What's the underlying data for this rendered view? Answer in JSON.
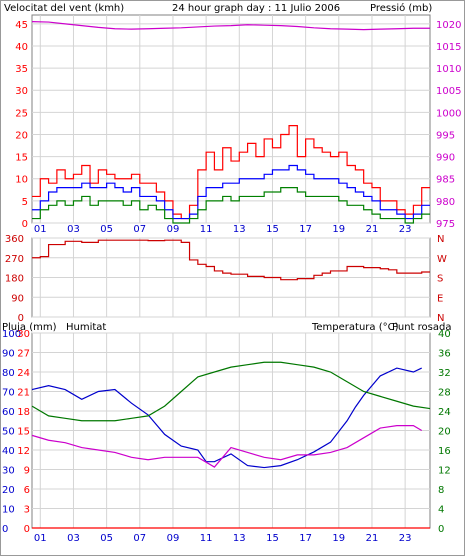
{
  "colors": {
    "wind": "#ff0000",
    "wind_avg": "#0000ff",
    "wind_gust": "#008000",
    "pressure": "#cc00cc",
    "direction": "#cc0000",
    "rain": "#ff0000",
    "humidity": "#0000cc",
    "temperature": "#007700",
    "dewpoint": "#cc00cc",
    "grid": "#d4d4d4"
  },
  "chart_data": [
    {
      "type": "line",
      "title": "24 hour graph day : 11 Julio 2006",
      "left_axis_label": "Velocitat del vent (kmh)",
      "right_axis_label": "Pressió (mb)",
      "x_ticks": [
        "01",
        "03",
        "05",
        "07",
        "09",
        "11",
        "13",
        "15",
        "17",
        "19",
        "21",
        "23"
      ],
      "y_left_ticks": [
        "0",
        "5",
        "10",
        "15",
        "20",
        "25",
        "30",
        "35",
        "40",
        "45"
      ],
      "y_left_range": [
        0,
        47
      ],
      "y_right_ticks": [
        "975",
        "980",
        "985",
        "990",
        "995",
        "1000",
        "1005",
        "1010",
        "1015",
        "1020"
      ],
      "y_right_range": [
        975,
        1022
      ],
      "series": [
        {
          "key": "gust",
          "color_key": "wind",
          "x": [
            0,
            0.5,
            1,
            1.5,
            2,
            2.5,
            3,
            3.5,
            4,
            4.5,
            5,
            5.5,
            6,
            6.5,
            7,
            7.5,
            8,
            8.5,
            9,
            9.5,
            10,
            10.5,
            11,
            11.5,
            12,
            12.5,
            13,
            13.5,
            14,
            14.5,
            15,
            15.5,
            16,
            16.5,
            17,
            17.5,
            18,
            18.5,
            19,
            19.5,
            20,
            20.5,
            21,
            21.5,
            22,
            22.5,
            23,
            23.5
          ],
          "values": [
            6,
            10,
            9,
            12,
            10,
            11,
            13,
            9,
            12,
            11,
            10,
            10,
            11,
            9,
            9,
            7,
            5,
            2,
            1,
            4,
            12,
            16,
            12,
            17,
            14,
            16,
            18,
            15,
            19,
            17,
            20,
            22,
            15,
            19,
            17,
            16,
            15,
            16,
            13,
            12,
            9,
            8,
            5,
            5,
            3,
            2,
            4,
            8
          ]
        },
        {
          "key": "average",
          "color_key": "wind_avg",
          "x": [
            0,
            0.5,
            1,
            1.5,
            2,
            2.5,
            3,
            3.5,
            4,
            4.5,
            5,
            5.5,
            6,
            6.5,
            7,
            7.5,
            8,
            8.5,
            9,
            9.5,
            10,
            10.5,
            11,
            11.5,
            12,
            12.5,
            13,
            13.5,
            14,
            14.5,
            15,
            15.5,
            16,
            16.5,
            17,
            17.5,
            18,
            18.5,
            19,
            19.5,
            20,
            20.5,
            21,
            21.5,
            22,
            22.5,
            23,
            23.5
          ],
          "values": [
            3,
            5,
            7,
            8,
            8,
            8,
            9,
            8,
            8,
            9,
            8,
            7,
            8,
            6,
            6,
            5,
            3,
            1,
            1,
            2,
            6,
            8,
            8,
            9,
            9,
            10,
            10,
            10,
            11,
            12,
            12,
            13,
            12,
            11,
            10,
            10,
            10,
            9,
            8,
            7,
            6,
            5,
            3,
            3,
            2,
            1,
            2,
            4
          ]
        },
        {
          "key": "low",
          "color_key": "wind_gust",
          "x": [
            0,
            0.5,
            1,
            1.5,
            2,
            2.5,
            3,
            3.5,
            4,
            4.5,
            5,
            5.5,
            6,
            6.5,
            7,
            7.5,
            8,
            8.5,
            9,
            9.5,
            10,
            10.5,
            11,
            11.5,
            12,
            12.5,
            13,
            13.5,
            14,
            14.5,
            15,
            15.5,
            16,
            16.5,
            17,
            17.5,
            18,
            18.5,
            19,
            19.5,
            20,
            20.5,
            21,
            21.5,
            22,
            22.5,
            23,
            23.5
          ],
          "values": [
            1,
            3,
            4,
            5,
            4,
            5,
            6,
            4,
            5,
            5,
            5,
            4,
            5,
            3,
            4,
            3,
            1,
            0,
            0,
            1,
            3,
            5,
            5,
            6,
            5,
            6,
            6,
            6,
            7,
            7,
            8,
            8,
            7,
            6,
            6,
            6,
            6,
            5,
            4,
            4,
            3,
            2,
            1,
            1,
            1,
            0,
            1,
            2
          ]
        },
        {
          "key": "pressure",
          "color_key": "pressure",
          "axis": "right",
          "x": [
            0,
            1,
            2,
            3,
            4,
            5,
            6,
            7,
            8,
            9,
            10,
            11,
            12,
            13,
            14,
            15,
            16,
            17,
            18,
            19,
            20,
            21,
            22,
            23,
            24
          ],
          "values": [
            1020.5,
            1020.4,
            1020.0,
            1019.6,
            1019.2,
            1018.9,
            1018.8,
            1018.9,
            1019.0,
            1019.1,
            1019.3,
            1019.5,
            1019.6,
            1019.8,
            1019.7,
            1019.6,
            1019.4,
            1019.1,
            1018.9,
            1018.8,
            1018.7,
            1018.8,
            1018.9,
            1019.0,
            1019.0
          ]
        }
      ]
    },
    {
      "type": "line",
      "y_left_ticks": [
        "360",
        "270",
        "180",
        "90",
        "0"
      ],
      "y_left_range": [
        0,
        360
      ],
      "y_right_ticks": [
        "N",
        "W",
        "S",
        "E",
        "N"
      ],
      "series": [
        {
          "key": "direction",
          "color_key": "direction",
          "x": [
            0,
            0.5,
            1,
            2,
            3,
            4,
            5,
            6,
            7,
            8,
            9,
            9.5,
            10,
            10.5,
            11,
            11.5,
            12,
            13,
            14,
            15,
            16,
            17,
            17.5,
            18,
            19,
            20,
            21,
            21.5,
            22,
            23,
            23.5
          ],
          "values": [
            270,
            275,
            330,
            345,
            340,
            350,
            350,
            350,
            348,
            350,
            340,
            260,
            240,
            230,
            210,
            200,
            195,
            185,
            180,
            170,
            175,
            190,
            200,
            210,
            230,
            225,
            220,
            215,
            200,
            200,
            205
          ]
        }
      ]
    },
    {
      "type": "line",
      "left_axis_label": "Pluja (mm)",
      "left_axis_label_2": "Humitat",
      "right_axis_label": "Temperatura (°C)",
      "right_axis_label_2": "Punt rosada",
      "y_left_ticks": [
        "0",
        "3",
        "6",
        "9",
        "12",
        "15",
        "18",
        "21",
        "24",
        "27",
        "30"
      ],
      "y_left2_ticks": [
        "0",
        "10",
        "20",
        "30",
        "40",
        "50",
        "60",
        "70",
        "80",
        "90",
        "100"
      ],
      "y_right_ticks": [
        "0",
        "4",
        "8",
        "12",
        "16",
        "20",
        "24",
        "28",
        "32",
        "36",
        "40"
      ],
      "y_right_range": [
        0,
        40
      ],
      "series": [
        {
          "key": "humidity",
          "color_key": "humidity",
          "axis": "left2",
          "x": [
            0,
            1,
            2,
            3,
            4,
            5,
            6,
            7,
            8,
            9,
            10,
            10.5,
            11,
            12,
            13,
            14,
            15,
            16,
            17,
            18,
            19,
            19.5,
            20,
            21,
            22,
            23,
            23.5
          ],
          "values": [
            71,
            73,
            71,
            66,
            70,
            71,
            64,
            58,
            48,
            42,
            40,
            34,
            34,
            38,
            32,
            31,
            32,
            35,
            39,
            44,
            55,
            62,
            68,
            78,
            82,
            80,
            82
          ]
        },
        {
          "key": "temperature",
          "color_key": "temperature",
          "axis": "right",
          "x": [
            0,
            1,
            2,
            3,
            4,
            5,
            6,
            7,
            8,
            9,
            10,
            11,
            12,
            13,
            14,
            15,
            16,
            17,
            18,
            19,
            20,
            21,
            22,
            23,
            24
          ],
          "values": [
            25,
            23,
            22.5,
            22,
            22,
            22,
            22.5,
            23,
            25,
            28,
            31,
            32,
            33,
            33.5,
            34,
            34,
            33.5,
            33,
            32,
            30,
            28,
            27,
            26,
            25,
            24.5
          ]
        },
        {
          "key": "dewpoint",
          "color_key": "dewpoint",
          "axis": "right",
          "x": [
            0,
            1,
            2,
            3,
            4,
            5,
            6,
            7,
            8,
            9,
            10,
            11,
            12,
            13,
            14,
            15,
            16,
            17,
            18,
            19,
            20,
            21,
            22,
            23,
            23.5
          ],
          "values": [
            19,
            18,
            17.5,
            16.5,
            16,
            15.5,
            14.5,
            14,
            14.5,
            14.5,
            14.5,
            12.5,
            16.5,
            15.5,
            14.5,
            14,
            15,
            15,
            15.5,
            16.5,
            18.5,
            20.5,
            21,
            21,
            20
          ]
        },
        {
          "key": "rain",
          "color_key": "rain",
          "axis": "left",
          "x": [
            0,
            24
          ],
          "values": [
            0,
            0
          ]
        }
      ]
    }
  ]
}
